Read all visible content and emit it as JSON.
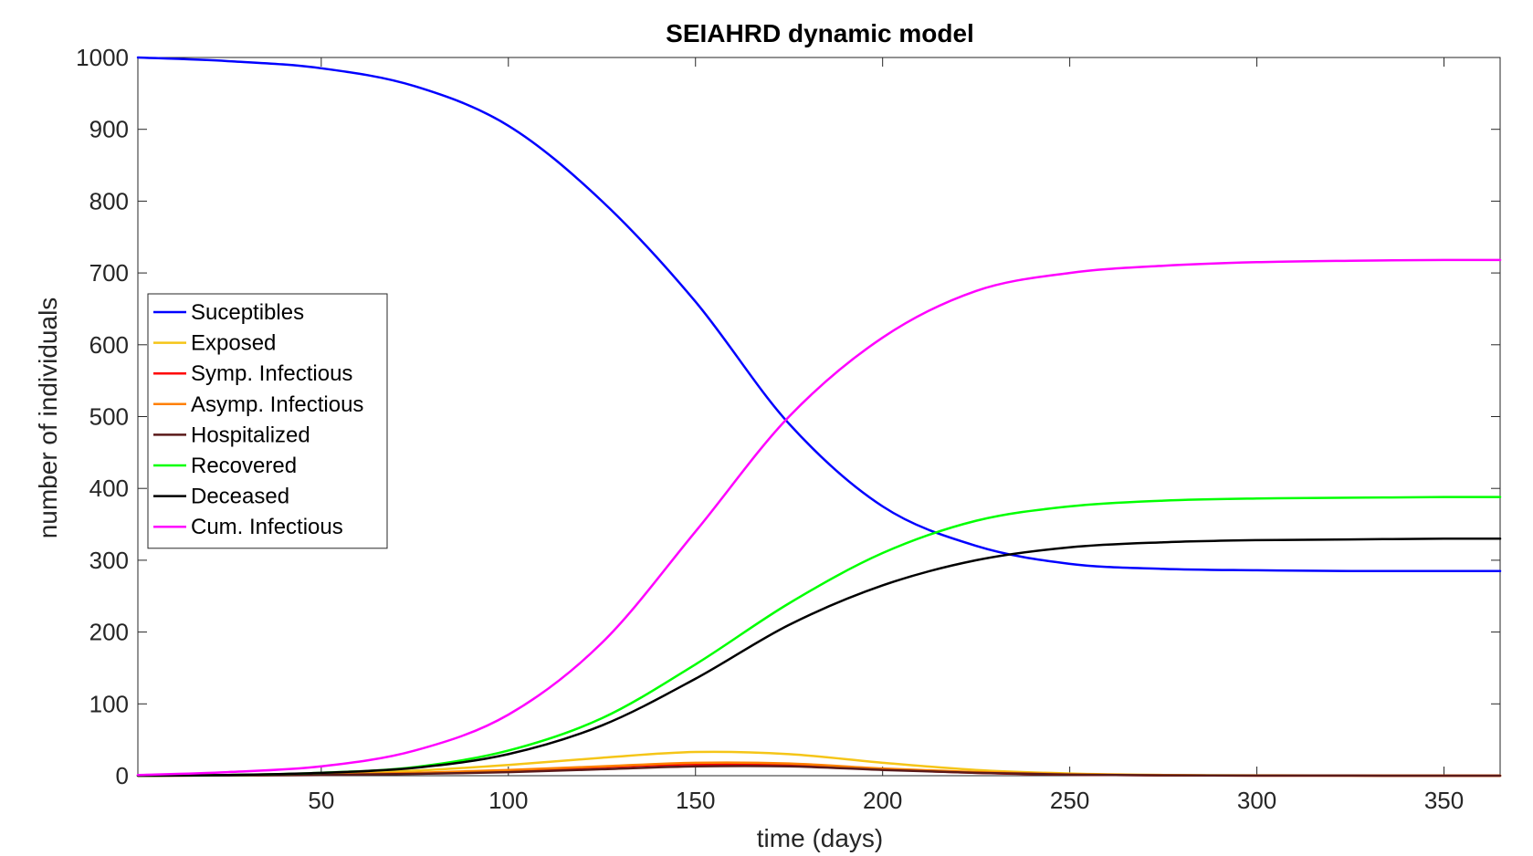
{
  "chart_data": {
    "type": "line",
    "title": "SEIAHRD dynamic model",
    "xlabel": "time (days)",
    "ylabel": "number of individuals",
    "xlim": [
      1,
      365
    ],
    "ylim": [
      0,
      1000
    ],
    "xticks": [
      50,
      100,
      150,
      200,
      250,
      300,
      350
    ],
    "yticks": [
      0,
      100,
      200,
      300,
      400,
      500,
      600,
      700,
      800,
      900,
      1000
    ],
    "grid": false,
    "legend_position": "left",
    "x": [
      1,
      25,
      50,
      75,
      100,
      125,
      150,
      175,
      200,
      225,
      250,
      275,
      300,
      325,
      350,
      365
    ],
    "series": [
      {
        "name": "Suceptibles",
        "color": "#0000ff",
        "values": [
          1000,
          995,
          985,
          960,
          905,
          800,
          660,
          490,
          375,
          320,
          295,
          288,
          286,
          285,
          285,
          285
        ]
      },
      {
        "name": "Exposed",
        "color": "#f5c518",
        "values": [
          0,
          1,
          3,
          7,
          15,
          25,
          33,
          30,
          18,
          8,
          3,
          1,
          0.5,
          0.2,
          0.1,
          0
        ]
      },
      {
        "name": "Symp. Infectious",
        "color": "#ff0000",
        "values": [
          0,
          0.5,
          1.5,
          3.5,
          7,
          12,
          16,
          15,
          9,
          4,
          1.5,
          0.5,
          0.2,
          0.1,
          0,
          0
        ]
      },
      {
        "name": "Asymp. Infectious",
        "color": "#ff8000",
        "values": [
          0,
          0.5,
          1.5,
          4,
          8,
          13,
          18,
          17,
          10,
          5,
          2,
          0.6,
          0.2,
          0.1,
          0,
          0
        ]
      },
      {
        "name": "Hospitalized",
        "color": "#5a1a1a",
        "values": [
          0,
          0.3,
          1,
          2.5,
          5,
          9,
          13,
          13,
          8,
          4,
          1.5,
          0.5,
          0.2,
          0.1,
          0,
          0
        ]
      },
      {
        "name": "Recovered",
        "color": "#00ff00",
        "values": [
          0,
          1,
          4,
          12,
          35,
          80,
          155,
          240,
          310,
          355,
          375,
          383,
          386,
          387,
          388,
          388
        ]
      },
      {
        "name": "Deceased",
        "color": "#000000",
        "values": [
          0,
          1,
          4,
          11,
          30,
          70,
          135,
          210,
          265,
          300,
          318,
          325,
          328,
          329,
          330,
          330
        ]
      },
      {
        "name": "Cum. Infectious",
        "color": "#ff00ff",
        "values": [
          1,
          5,
          13,
          35,
          85,
          185,
          340,
          500,
          610,
          675,
          700,
          710,
          715,
          717,
          718,
          718
        ]
      }
    ]
  }
}
